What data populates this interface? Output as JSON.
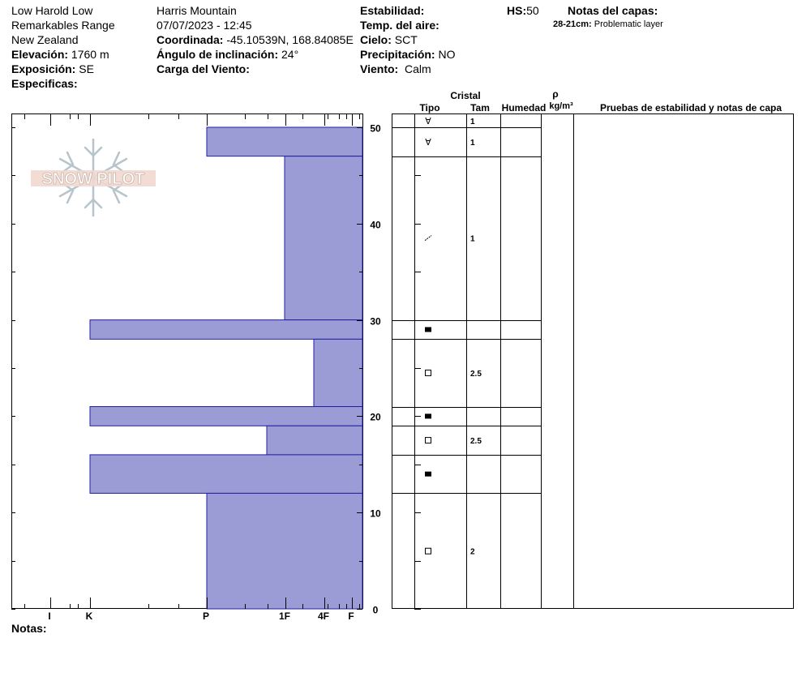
{
  "header": {
    "observer": "Low Harold Low",
    "range": "Remarkables Range",
    "country": "New Zealand",
    "elevation_label": "Elevación:",
    "elevation_value": "1760 m",
    "aspect_label": "Exposición:",
    "aspect_value": "SE",
    "specifics_label": "Especificas:",
    "location": "Harris Mountain",
    "datetime": "07/07/2023 - 12:45",
    "coord_label": "Coordinada:",
    "coord_value": "-45.10539N, 168.84085E",
    "slope_label": "Ángulo de inclinación:",
    "slope_value": "24°",
    "wind_load_label": "Carga del Viento:",
    "stability_label": "Estabilidad:",
    "air_temp_label": "Temp. del aire:",
    "sky_label": "Cielo:",
    "sky_value": "SCT",
    "precip_label": "Precipitación:",
    "precip_value": "NO",
    "wind_label": "Viento:",
    "wind_value": "Calm",
    "hs_label": "HS:",
    "hs_value": "50",
    "layer_notes_label": "Notas del capas:",
    "layer_note_range": "28-21cm:",
    "layer_note_text": "Problematic layer"
  },
  "logo": {
    "text": "SNOW PILOT"
  },
  "notes_label": "Notas:",
  "table_headers": {
    "crystal": "Cristal",
    "type": "Tipo",
    "size": "Tam",
    "humidity": "Humedad",
    "rho": "ρ",
    "density_unit": "kg/m³",
    "tests": "Pruebas de estabilidad y notas de capa"
  },
  "colors": {
    "hardness_fill": "#9b9bd6",
    "hardness_stroke": "#2020a0"
  },
  "chart_data": {
    "type": "bar",
    "orientation": "horizontal",
    "yaxis": {
      "label": "",
      "range": [
        0,
        50
      ],
      "ticks": [
        0,
        10,
        20,
        30,
        40,
        50
      ]
    },
    "xaxis": {
      "labels": [
        "I",
        "K",
        "P",
        "1F",
        "4F",
        "F"
      ],
      "direction": "right-to-left"
    },
    "layers": [
      {
        "top": 50,
        "bottom": 47,
        "hardness": "P",
        "grain_symbol": "∀",
        "size": "1"
      },
      {
        "top": 47,
        "bottom": 30,
        "hardness": "1F",
        "grain_symbol": "/",
        "size": "1"
      },
      {
        "top": 30,
        "bottom": 28,
        "hardness": "K",
        "grain_symbol": "■",
        "size": ""
      },
      {
        "top": 28,
        "bottom": 21,
        "hardness": "4F",
        "grain_symbol": "□",
        "size": "2.5"
      },
      {
        "top": 21,
        "bottom": 19,
        "hardness": "K",
        "grain_symbol": "■",
        "size": ""
      },
      {
        "top": 19,
        "bottom": 16,
        "hardness": "1F-",
        "grain_symbol": "□",
        "size": "2.5"
      },
      {
        "top": 16,
        "bottom": 12,
        "hardness": "K",
        "grain_symbol": "■",
        "size": ""
      },
      {
        "top": 12,
        "bottom": 0,
        "hardness": "P",
        "grain_symbol": "□",
        "size": "2"
      }
    ],
    "surface_symbol": {
      "depth": 50,
      "grain_symbol": "∀",
      "size": "1"
    }
  }
}
